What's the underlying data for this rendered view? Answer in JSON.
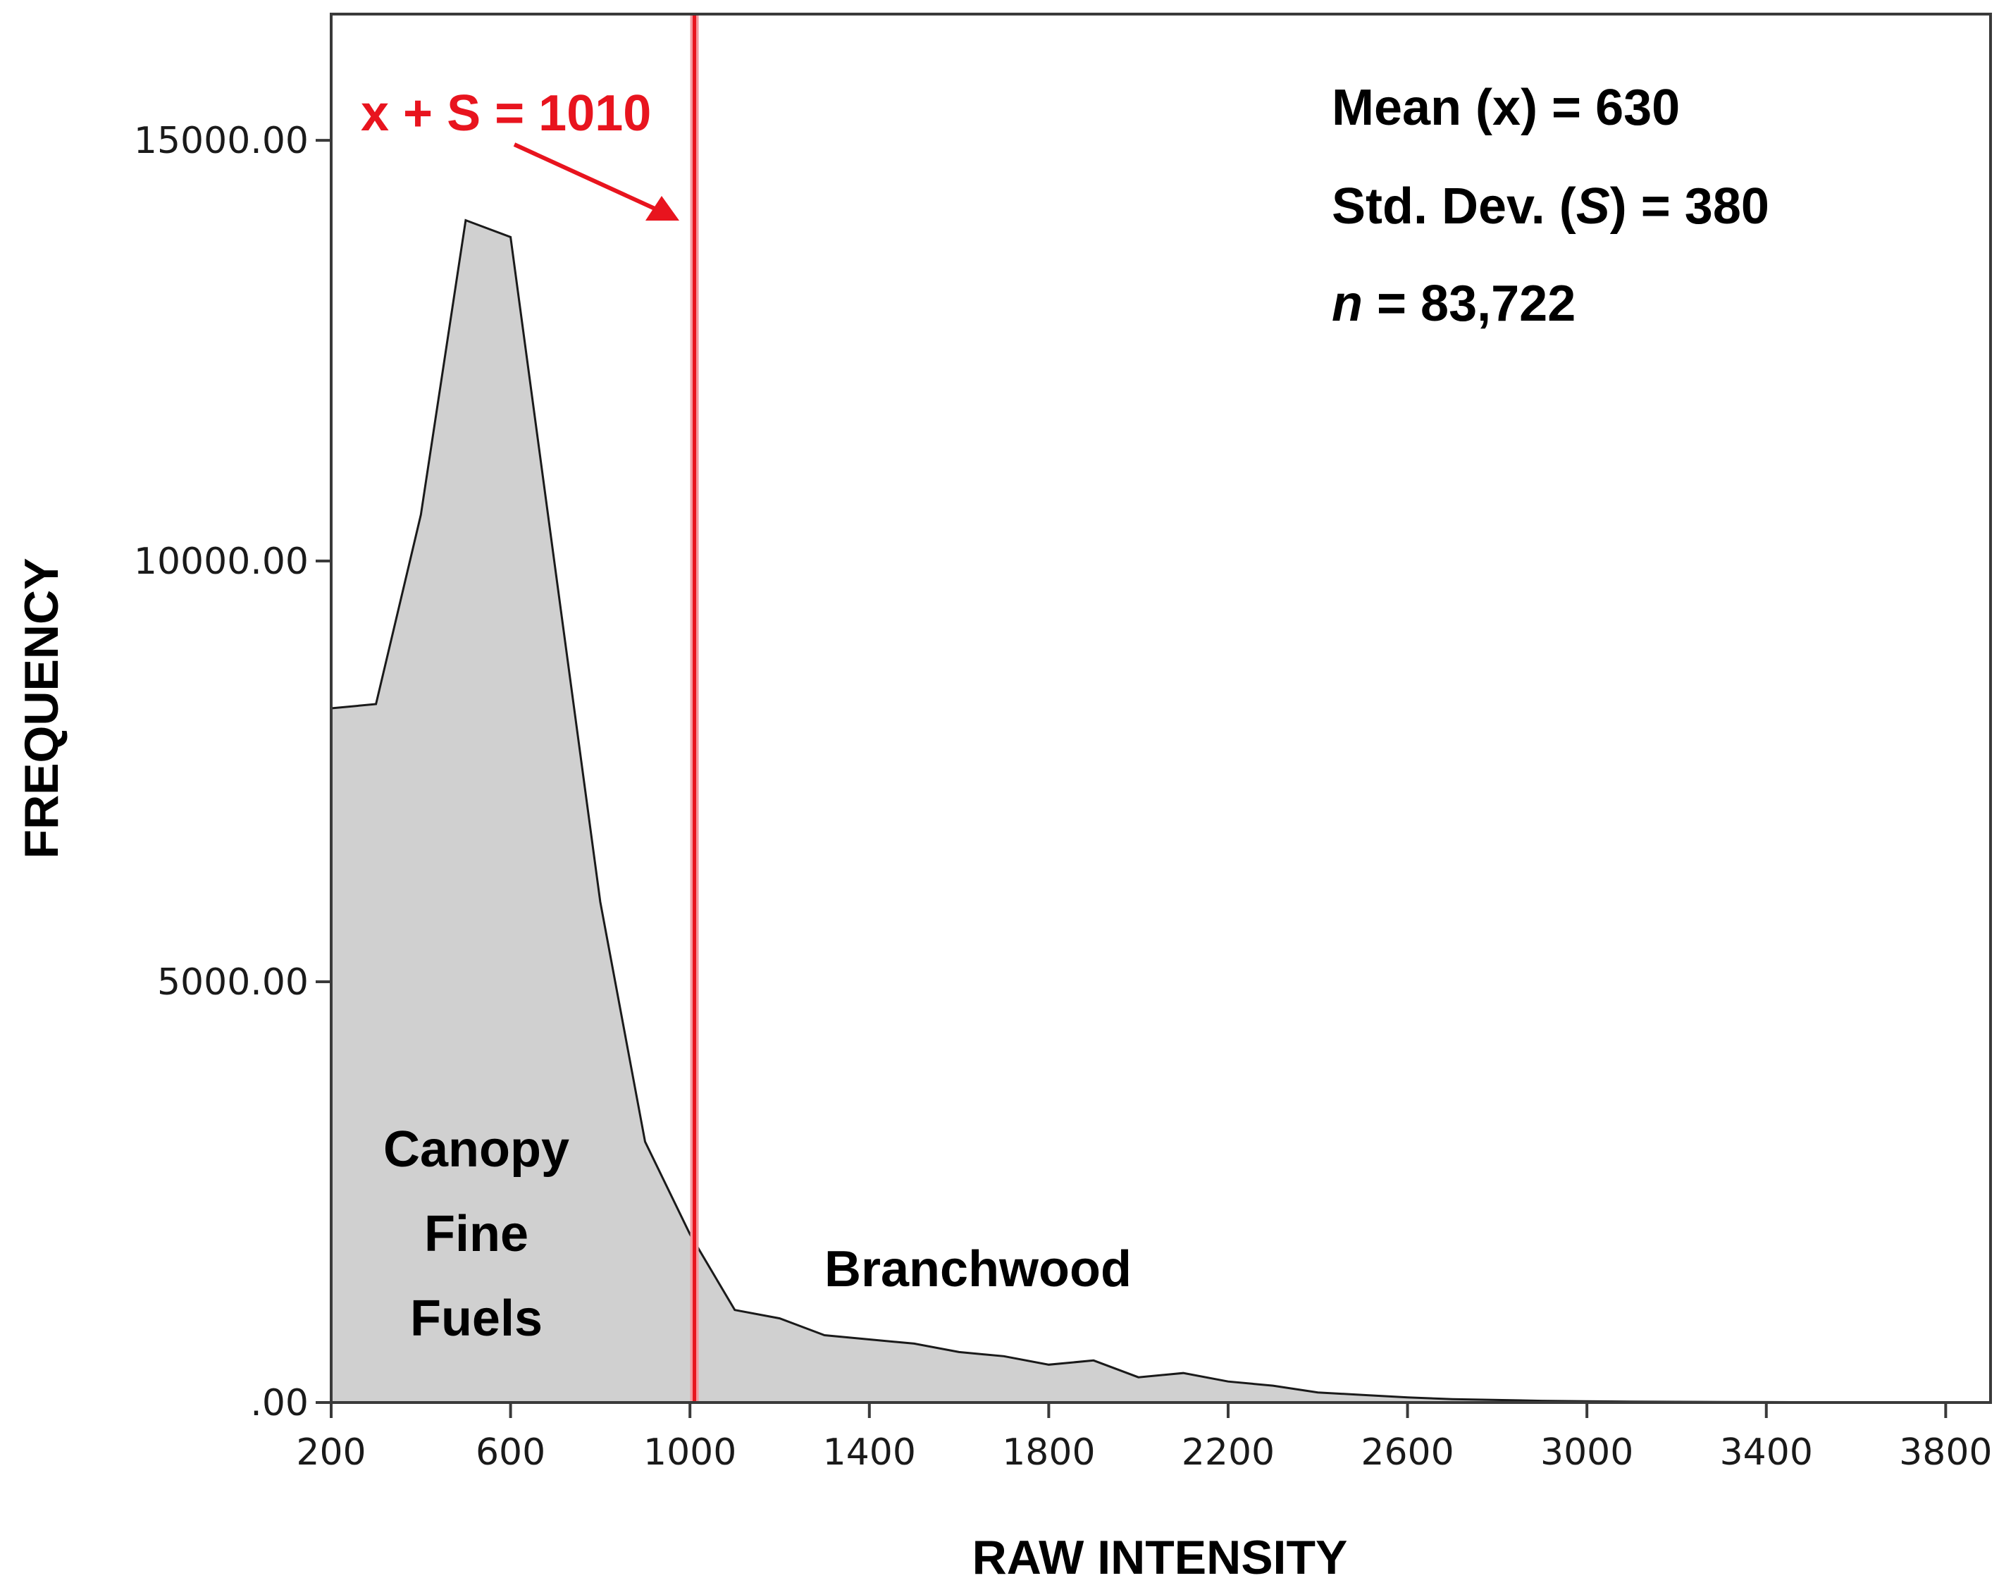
{
  "chart_data": {
    "type": "area",
    "xlabel": "RAW INTENSITY",
    "ylabel": "FREQUENCY",
    "xlim": [
      200,
      3900
    ],
    "ylim": [
      0,
      16500
    ],
    "x_ticks": [
      200,
      600,
      1000,
      1400,
      1800,
      2200,
      2600,
      3000,
      3400,
      3800
    ],
    "x_tick_labels": [
      "200",
      "600",
      "1000",
      "1400",
      "1800",
      "2200",
      "2600",
      "3000",
      "3400",
      "3800"
    ],
    "y_ticks": [
      0,
      5000,
      10000,
      15000
    ],
    "y_tick_labels": [
      ".00",
      "5000.00",
      "10000.00",
      "15000.00"
    ],
    "grid": false,
    "fill_color": "#d0d0d0",
    "line_color": "#1a1a1a",
    "series": [
      {
        "x": [
          200,
          300,
          400,
          500,
          600,
          700,
          800,
          900,
          1000,
          1100,
          1200,
          1300,
          1400,
          1500,
          1600,
          1700,
          1800,
          1900,
          2000,
          2100,
          2200,
          2300,
          2400,
          2500,
          2600,
          2700,
          2800,
          2900,
          3000,
          3100,
          3200,
          3300,
          3400,
          3500,
          3600,
          3700,
          3800
        ],
        "values": [
          8250,
          8300,
          10550,
          14050,
          13850,
          9900,
          5950,
          3100,
          2000,
          1100,
          1000,
          800,
          750,
          700,
          600,
          550,
          450,
          500,
          300,
          350,
          250,
          200,
          120,
          90,
          60,
          40,
          30,
          20,
          15,
          10,
          8,
          6,
          5,
          4,
          3,
          2,
          2
        ]
      }
    ],
    "reference_line": {
      "x": 1010,
      "label": "x + S = 1010",
      "color": "#e8141e"
    },
    "stats": {
      "mean": "Mean (x) = 630",
      "std_prefix": "Std. Dev. (",
      "std_symbol": "S",
      "std_suffix": ") = 380",
      "n_symbol": "n",
      "n_suffix": " = 83,722"
    },
    "region_labels": {
      "canopy": [
        "Canopy",
        "Fine",
        "Fuels"
      ],
      "branchwood": "Branchwood"
    }
  }
}
